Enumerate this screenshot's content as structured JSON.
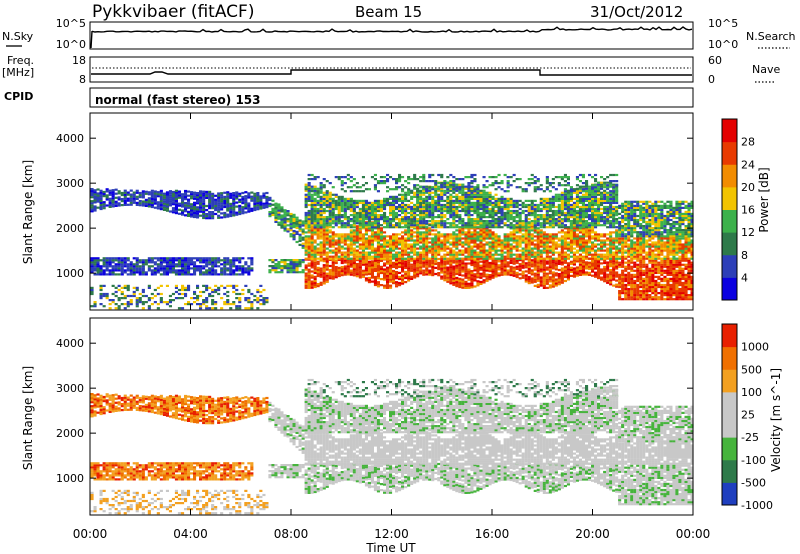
{
  "header": {
    "station": "Pykkvibaer (fitACF)",
    "beam": "Beam 15",
    "date": "31/Oct/2012"
  },
  "panels": {
    "nsky": {
      "left_label": "N.Sky",
      "ticks_left": [
        "10^5",
        "10^0"
      ],
      "ticks_right": [
        "10^5",
        "10^0"
      ],
      "right_label": "N.Search"
    },
    "freq": {
      "left_label_1": "Freq.",
      "left_label_2": "[MHz]",
      "ticks_left": [
        "18",
        "8"
      ],
      "ticks_right": [
        "60",
        "0"
      ],
      "right_label": "Nave"
    },
    "cpid": {
      "left_label": "CPID",
      "text": "normal (fast stereo) 153"
    }
  },
  "chart_data": [
    {
      "type": "heatmap",
      "title": "",
      "quantity": "Power",
      "colorbar_label": "Power [dB]",
      "colorbar_ticks": [
        "28",
        "24",
        "20",
        "16",
        "12",
        "8",
        "4"
      ],
      "colorbar_colors": [
        "#0b00e0",
        "#2d3fb8",
        "#2e7a4a",
        "#3cb14b",
        "#f2c400",
        "#f28c00",
        "#e83a00",
        "#e40000"
      ],
      "ylabel": "Slant Range [km]",
      "yticks": [
        "4000",
        "3000",
        "2000",
        "1000"
      ],
      "ylim": [
        180,
        4560
      ],
      "xlabel": "Time UT",
      "xticks": [
        "00:00",
        "04:00",
        "08:00",
        "12:00",
        "16:00",
        "20:00",
        "00:00"
      ],
      "xlim_hours": [
        0,
        24
      ]
    },
    {
      "type": "heatmap",
      "title": "",
      "quantity": "Velocity",
      "colorbar_label": "Velocity [m s^-1]",
      "colorbar_ticks": [
        "1000",
        "500",
        "100",
        "25",
        "-25",
        "-100",
        "-500",
        "-1000"
      ],
      "colorbar_colors": [
        "#1f3fbf",
        "#2e7a4a",
        "#46b43c",
        "#c8c8c8",
        "#c8c8c8",
        "#f3a020",
        "#f07000",
        "#e82000"
      ],
      "ylabel": "Slant Range [km]",
      "yticks": [
        "4000",
        "3000",
        "2000",
        "1000"
      ],
      "ylim": [
        180,
        4560
      ],
      "xlabel": "Time UT",
      "xticks": [
        "00:00",
        "04:00",
        "08:00",
        "12:00",
        "16:00",
        "20:00",
        "00:00"
      ],
      "xlim_hours": [
        0,
        24
      ]
    }
  ]
}
